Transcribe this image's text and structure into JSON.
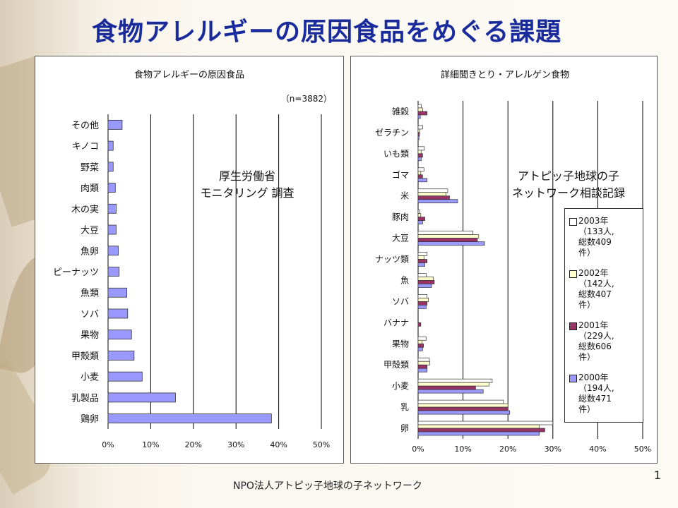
{
  "slide": {
    "title": "食物アレルギーの原因食品をめぐる課題",
    "footer": "NPO法人アトピッ子地球の子ネットワーク",
    "page_number": "1"
  },
  "left_panel": {
    "overlay_line1": "厚生労働省",
    "overlay_line2": "モニタリング 調査"
  },
  "right_panel": {
    "overlay_line1": "アトピッ子地球の子",
    "overlay_line2": "ネットワーク相談記録"
  },
  "chart_data": [
    {
      "type": "bar",
      "orientation": "horizontal",
      "title": "食物アレルギーの原因食品",
      "annotation": "（n=3882）",
      "categories": [
        "その他",
        "キノコ",
        "野菜",
        "肉類",
        "木の実",
        "大豆",
        "魚卵",
        "ピーナッツ",
        "魚類",
        "ソバ",
        "果物",
        "甲殻類",
        "小麦",
        "乳製品",
        "鶏卵"
      ],
      "values": [
        3.3,
        1.2,
        1.2,
        1.7,
        1.9,
        1.9,
        2.4,
        2.6,
        4.4,
        4.6,
        5.5,
        6.1,
        8.0,
        15.8,
        38.3
      ],
      "xlim": [
        0,
        50
      ],
      "xticks": [
        "0%",
        "10%",
        "20%",
        "30%",
        "40%",
        "50%"
      ],
      "bar_color": "#9999ff",
      "grid": "vertical",
      "legend": "none"
    },
    {
      "type": "bar",
      "orientation": "horizontal",
      "title": "詳細聞きとり・アレルゲン食物",
      "categories": [
        "雑穀",
        "ゼラチン",
        "いも類",
        "ゴマ",
        "米",
        "豚肉",
        "大豆",
        "ナッツ類",
        "魚",
        "ソバ",
        "バナナ",
        "果物",
        "甲殻類",
        "小麦",
        "乳",
        "卵"
      ],
      "series": [
        {
          "name": "2003年（133人、総数409件）",
          "color": "#ffffff",
          "values": [
            0.7,
            1.0,
            1.4,
            1.3,
            6.6,
            0.4,
            12.2,
            2.0,
            1.8,
            2.0,
            0.0,
            1.8,
            2.5,
            16.5,
            19.0,
            30.0
          ]
        },
        {
          "name": "2002年（142人、総数407件）",
          "color": "#ffffcc",
          "values": [
            1.0,
            0.4,
            0.7,
            0.6,
            6.2,
            0.6,
            13.5,
            1.3,
            3.4,
            2.3,
            0.0,
            0.9,
            2.6,
            15.8,
            20.0,
            27.0
          ]
        },
        {
          "name": "2001年（229人、総数606件）",
          "color": "#993366",
          "values": [
            2.0,
            0.3,
            1.0,
            1.0,
            7.0,
            1.5,
            13.2,
            2.0,
            3.6,
            2.0,
            0.6,
            1.2,
            2.0,
            12.8,
            20.0,
            28.2
          ]
        },
        {
          "name": "2000年（194人、総数471件）",
          "color": "#9999ff",
          "values": [
            0.5,
            0.2,
            0.7,
            2.0,
            8.8,
            1.0,
            14.8,
            1.5,
            3.0,
            1.8,
            0.0,
            1.0,
            2.0,
            14.5,
            20.4,
            27.0
          ]
        }
      ],
      "legend_lines": [
        [
          "2003年",
          "（133人,",
          "総数409",
          "件）"
        ],
        [
          "2002年",
          "（142人,",
          "総数407",
          "件）"
        ],
        [
          "2001年",
          "（229人,",
          "総数606",
          "件）"
        ],
        [
          "2000年",
          "（194人,",
          "総数471",
          "件）"
        ]
      ],
      "xlim": [
        0,
        50
      ],
      "xticks": [
        "0%",
        "10%",
        "20%",
        "30%",
        "40%",
        "50%"
      ],
      "grid": "vertical",
      "legend": "right"
    }
  ]
}
